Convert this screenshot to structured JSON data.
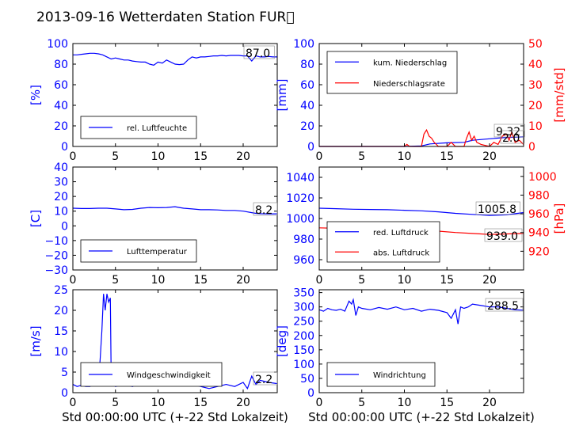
{
  "page": {
    "title": "2013-09-16 Wetterdaten Station FUR\u0000",
    "xlabel": "Std 00:00:00 UTC (+-22 Std Lokalzeit)"
  },
  "colors": {
    "blue": "#0000ff",
    "red": "#ff0000",
    "axis": "#000000",
    "bg": "#ffffff"
  },
  "chart_data": [
    {
      "id": "humidity",
      "type": "line",
      "xlim": [
        0,
        24
      ],
      "xticks": [
        0,
        5,
        10,
        15,
        20
      ],
      "ylim": [
        0,
        100
      ],
      "yticks": [
        0,
        20,
        40,
        60,
        80,
        100
      ],
      "ylabel": "[%]",
      "annotation": "87.0",
      "legend": [
        {
          "name": "rel. Luftfeuchte",
          "color": "#0000ff"
        }
      ],
      "series": [
        {
          "name": "rel. Luftfeuchte",
          "color": "#0000ff",
          "x": [
            0,
            0.5,
            1,
            1.5,
            2,
            2.5,
            3,
            3.5,
            4,
            4.5,
            5,
            5.5,
            6,
            6.5,
            7,
            7.5,
            8,
            8.5,
            9,
            9.5,
            10,
            10.5,
            11,
            11.5,
            12,
            12.5,
            13,
            13.5,
            14,
            14.5,
            15,
            15.5,
            16,
            16.5,
            17,
            17.5,
            18,
            18.5,
            19,
            19.5,
            20,
            20.5,
            21,
            21.5,
            22,
            22.5,
            23,
            23.5,
            24
          ],
          "y": [
            89,
            89,
            89.5,
            90,
            90.5,
            90.5,
            90,
            89,
            87,
            85,
            86,
            85,
            84,
            84,
            83,
            82.5,
            82,
            82,
            80,
            79,
            82,
            81,
            84,
            82,
            80,
            79.5,
            80,
            84,
            87,
            86,
            87,
            87,
            87.5,
            88,
            88,
            88.5,
            88,
            88.5,
            88.5,
            88.5,
            88,
            88,
            83,
            88,
            87,
            87,
            87.5,
            87,
            87
          ]
        }
      ]
    },
    {
      "id": "precip",
      "type": "line",
      "xlim": [
        0,
        24
      ],
      "xticks": [
        0,
        5,
        10,
        15,
        20
      ],
      "ylim": [
        0,
        100
      ],
      "yticks": [
        0,
        20,
        40,
        60,
        80,
        100
      ],
      "ylabel": "[mm]",
      "y2lim": [
        0,
        50
      ],
      "y2ticks": [
        0,
        10,
        20,
        30,
        40,
        50
      ],
      "y2label": "[mm/std]",
      "annotations": [
        "9.32",
        "2.0"
      ],
      "legend": [
        {
          "name": "kum. Niederschlag",
          "color": "#0000ff"
        },
        {
          "name": "Niederschlagsrate",
          "color": "#ff0000"
        }
      ],
      "series": [
        {
          "name": "kum. Niederschlag",
          "color": "#0000ff",
          "axis": "left",
          "x": [
            0,
            10,
            12,
            12.5,
            13,
            15,
            17,
            17.5,
            18,
            20,
            22,
            24
          ],
          "y": [
            0,
            0,
            0.5,
            1.5,
            2.5,
            3.5,
            4,
            5,
            6,
            7.5,
            8.8,
            9.32
          ]
        },
        {
          "name": "Niederschlagsrate",
          "color": "#ff0000",
          "axis": "right",
          "x": [
            0,
            10,
            10.3,
            10.6,
            12,
            12.3,
            12.6,
            12.9,
            13.2,
            13.5,
            14,
            15,
            15.5,
            16,
            17,
            17.3,
            17.6,
            17.9,
            18.2,
            18.5,
            19,
            20,
            20.5,
            21,
            21.5,
            22,
            22.3,
            22.6,
            23,
            23.5,
            24
          ],
          "y": [
            0,
            0,
            1,
            0,
            0,
            6,
            8,
            5,
            4,
            2,
            0,
            0,
            2,
            0,
            0,
            4,
            7,
            3,
            5,
            2,
            1,
            0,
            2,
            1,
            5,
            6,
            3,
            7,
            2,
            3,
            1
          ]
        }
      ]
    },
    {
      "id": "temperature",
      "type": "line",
      "xlim": [
        0,
        24
      ],
      "xticks": [
        0,
        5,
        10,
        15,
        20
      ],
      "ylim": [
        -30,
        40
      ],
      "yticks": [
        -30,
        -20,
        -10,
        0,
        10,
        20,
        30,
        40
      ],
      "ylabel": "[C]",
      "annotation": "8.2",
      "legend": [
        {
          "name": "Lufttemperatur",
          "color": "#0000ff"
        }
      ],
      "series": [
        {
          "name": "Lufttemperatur",
          "color": "#0000ff",
          "x": [
            0,
            1,
            2,
            3,
            4,
            5,
            6,
            7,
            8,
            9,
            10,
            11,
            12,
            12.5,
            13,
            14,
            15,
            16,
            17,
            18,
            19,
            20,
            21,
            21.5,
            22,
            23,
            24
          ],
          "y": [
            12,
            11.8,
            11.8,
            12,
            12,
            11.5,
            11,
            11.2,
            12,
            12.5,
            12.3,
            12.5,
            13,
            12.5,
            12,
            11.5,
            11,
            11,
            10.8,
            10.5,
            10.5,
            10,
            9,
            8.5,
            8.3,
            8.2,
            8.2
          ]
        }
      ]
    },
    {
      "id": "pressure",
      "type": "line",
      "xlim": [
        0,
        24
      ],
      "xticks": [
        0,
        5,
        10,
        15,
        20
      ],
      "ylim": [
        950,
        1050
      ],
      "yticks": [
        960,
        980,
        1000,
        1020,
        1040
      ],
      "y2lim": [
        900,
        1010
      ],
      "y2ticks": [
        920,
        940,
        960,
        980,
        1000
      ],
      "y2label": "[hPa]",
      "annotations": [
        "1005.8",
        "939.0"
      ],
      "legend": [
        {
          "name": "red. Luftdruck",
          "color": "#0000ff"
        },
        {
          "name": "abs. Luftdruck",
          "color": "#ff0000"
        }
      ],
      "series": [
        {
          "name": "red. Luftdruck",
          "color": "#0000ff",
          "axis": "left",
          "x": [
            0,
            2,
            4,
            6,
            8,
            10,
            12,
            14,
            16,
            18,
            20,
            22,
            24
          ],
          "y": [
            1010,
            1009.5,
            1009,
            1008.8,
            1008.5,
            1008,
            1007.5,
            1006.5,
            1005,
            1004,
            1003,
            1003.5,
            1005.8
          ]
        },
        {
          "name": "abs. Luftdruck",
          "color": "#ff0000",
          "axis": "right",
          "x": [
            0,
            2,
            4,
            6,
            8,
            10,
            12,
            14,
            16,
            18,
            20,
            22,
            24
          ],
          "y": [
            945,
            944.5,
            944,
            943.8,
            943.5,
            943,
            942.5,
            941.5,
            940,
            939,
            938,
            938.5,
            939
          ]
        }
      ]
    },
    {
      "id": "windspeed",
      "type": "line",
      "xlim": [
        0,
        24
      ],
      "xticks": [
        0,
        5,
        10,
        15,
        20
      ],
      "ylim": [
        0,
        25
      ],
      "yticks": [
        0,
        5,
        10,
        15,
        20,
        25
      ],
      "ylabel": "[m/s]",
      "annotation": "2.2",
      "legend": [
        {
          "name": "Windgeschwindigkeit",
          "color": "#0000ff"
        }
      ],
      "series": [
        {
          "name": "Windgeschwindigkeit",
          "color": "#0000ff",
          "x": [
            0,
            0.5,
            1,
            1.5,
            2,
            2.5,
            3,
            3.2,
            3.4,
            3.6,
            3.8,
            4,
            4.2,
            4.4,
            4.5,
            4.7,
            5,
            6,
            7,
            8,
            9,
            10,
            11,
            12,
            12.5,
            13,
            14,
            15,
            16,
            17,
            18,
            19,
            20,
            20.5,
            21,
            21.5,
            22,
            23,
            24
          ],
          "y": [
            2,
            1.5,
            1.8,
            1.5,
            1.5,
            2,
            3,
            8,
            15,
            24,
            20,
            24,
            22,
            23,
            3,
            2,
            1.5,
            2,
            1.5,
            2.5,
            2,
            2.5,
            3,
            3.5,
            4,
            3,
            2,
            1.5,
            1,
            1.5,
            2,
            1.5,
            2.5,
            1,
            4,
            2,
            3,
            2.5,
            2.2
          ]
        }
      ]
    },
    {
      "id": "winddir",
      "type": "line",
      "xlim": [
        0,
        24
      ],
      "xticks": [
        0,
        5,
        10,
        15,
        20
      ],
      "ylim": [
        0,
        360
      ],
      "yticks": [
        0,
        50,
        100,
        150,
        200,
        250,
        300,
        350
      ],
      "ylabel": "[deg]",
      "annotation": "288.5",
      "legend": [
        {
          "name": "Windrichtung",
          "color": "#0000ff"
        }
      ],
      "series": [
        {
          "name": "Windrichtung",
          "color": "#0000ff",
          "x": [
            0,
            0.5,
            1,
            1.5,
            2,
            2.5,
            3,
            3.5,
            3.8,
            4,
            4.3,
            4.6,
            5,
            6,
            7,
            8,
            9,
            10,
            11,
            12,
            13,
            14,
            15,
            15.5,
            16,
            16.3,
            16.6,
            17,
            17.5,
            18,
            19,
            20,
            21,
            22,
            23,
            24
          ],
          "y": [
            290,
            285,
            295,
            290,
            288,
            292,
            285,
            320,
            310,
            325,
            270,
            300,
            295,
            290,
            298,
            292,
            300,
            290,
            295,
            285,
            292,
            288,
            280,
            260,
            290,
            240,
            300,
            295,
            300,
            310,
            305,
            300,
            300,
            295,
            290,
            288.5
          ]
        }
      ]
    }
  ]
}
